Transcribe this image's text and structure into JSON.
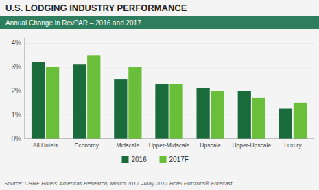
{
  "chart_data": {
    "type": "bar",
    "title": "U.S. LODGING INDUSTRY PERFORMANCE",
    "subtitle": "Annual Change in RevPAR – 2016 and 2017",
    "categories": [
      "All Hotels",
      "Economy",
      "Midscale",
      "Upper-Midscale",
      "Upscale",
      "Upper-Upscale",
      "Luxury"
    ],
    "series": [
      {
        "name": "2016",
        "color": "#1a6b3c",
        "values": [
          3.2,
          3.1,
          2.5,
          2.3,
          2.1,
          2.0,
          1.25
        ]
      },
      {
        "name": "2017F",
        "color": "#6abf3a",
        "values": [
          3.0,
          3.5,
          3.0,
          2.3,
          2.0,
          1.7,
          1.5
        ]
      }
    ],
    "ylim": [
      0,
      4.2
    ],
    "yticks": [
      {
        "value": 0,
        "label": "0%"
      },
      {
        "value": 1,
        "label": "1%"
      },
      {
        "value": 2,
        "label": "2%"
      },
      {
        "value": 3,
        "label": "3%"
      },
      {
        "value": 4,
        "label": "4%"
      }
    ],
    "grid": true,
    "legend": "bottom",
    "annotations": [
      "Source: CBRE Hotels' Americas Research, March 2017 –May 2017 Hotel Horizons® Forecast"
    ]
  }
}
